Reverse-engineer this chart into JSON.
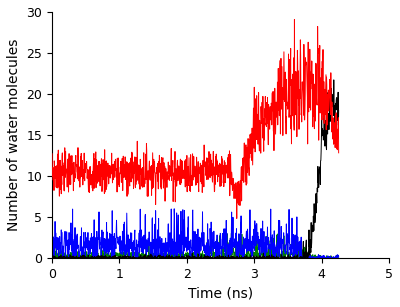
{
  "title": "",
  "xlabel": "Time (ns)",
  "ylabel": "Number of water molecules",
  "xlim": [
    0,
    5
  ],
  "ylim": [
    0,
    30
  ],
  "xticks": [
    0,
    1,
    2,
    3,
    4,
    5
  ],
  "yticks": [
    0,
    5,
    10,
    15,
    20,
    25,
    30
  ],
  "line_colors": [
    "red",
    "black",
    "blue",
    "green"
  ],
  "linewidth": 0.7,
  "figsize": [
    4.0,
    3.07
  ],
  "dpi": 100,
  "background_color": "white",
  "label_fontsize": 10,
  "tick_fontsize": 9
}
